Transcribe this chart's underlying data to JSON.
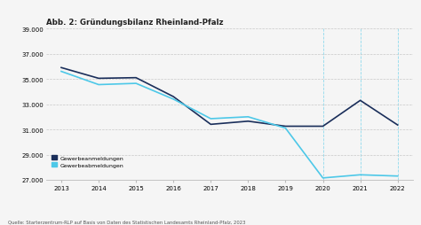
{
  "title": "Abb. 2: Gründungsbilanz Rheinland-Pfalz",
  "source": "Quelle: Starterzentrum-RLP auf Basis von Daten des Statistischen Landesamts Rheinland-Pfalz, 2023",
  "years": [
    2013,
    2014,
    2015,
    2016,
    2017,
    2018,
    2019,
    2020,
    2021,
    2022
  ],
  "gewerbeanmeldungen": [
    35900,
    35050,
    35100,
    33600,
    31400,
    31650,
    31250,
    31250,
    33300,
    31350
  ],
  "gewerbeabmeldungen": [
    35600,
    34550,
    34650,
    33400,
    31850,
    32000,
    31100,
    27150,
    27400,
    27300
  ],
  "color_anmeldungen": "#1a2e5a",
  "color_abmeldungen": "#4dc8e8",
  "ylim": [
    27000,
    39000
  ],
  "yticks": [
    27000,
    29000,
    31000,
    33000,
    35000,
    37000,
    39000
  ],
  "background_color": "#f5f5f5",
  "grid_color": "#c8c8c8",
  "dashed_vlines": [
    2020,
    2021,
    2022
  ],
  "legend_label_anmeldungen": "Gewerbeanmeldungen",
  "legend_label_abmeldungen": "Gewerbeabmeldungen"
}
